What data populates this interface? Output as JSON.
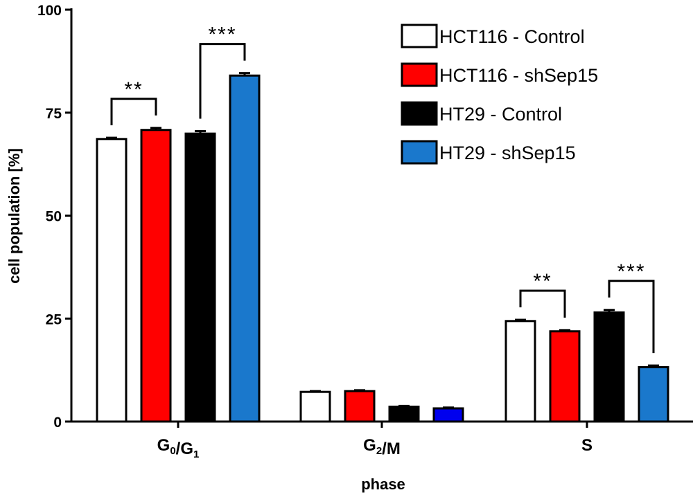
{
  "chart_data": {
    "type": "bar",
    "title": "",
    "xlabel": "phase",
    "ylabel": "cell population [%]",
    "ylim": [
      0,
      100
    ],
    "yticks": [
      0,
      25,
      50,
      75,
      100
    ],
    "categories": [
      {
        "main": "G",
        "sub1": "0",
        "sep": "/",
        "main2": "G",
        "sub2": "1"
      },
      {
        "main": "G",
        "sub1": "2",
        "sep": "/",
        "main2": "M",
        "sub2": ""
      },
      {
        "main": "S",
        "sub1": "",
        "sep": "",
        "main2": "",
        "sub2": ""
      }
    ],
    "series": [
      {
        "name": "HCT116 - Control",
        "color": "#ffffff",
        "values": [
          68.6,
          7.2,
          24.4
        ],
        "errors": [
          0.3,
          0.2,
          0.3
        ]
      },
      {
        "name": "HCT116 - shSep15",
        "color": "#ff0000",
        "values": [
          70.8,
          7.4,
          21.9
        ],
        "errors": [
          0.5,
          0.2,
          0.3
        ]
      },
      {
        "name": "HT29 - Control",
        "color": "#000000",
        "values": [
          69.9,
          3.6,
          26.5
        ],
        "errors": [
          0.6,
          0.2,
          0.6
        ]
      },
      {
        "name": "HT29 - shSep15",
        "color": "#1a78cc",
        "values": [
          84.0,
          3.2,
          13.2
        ],
        "errors": [
          0.6,
          0.2,
          0.4
        ]
      }
    ],
    "g2m_blue_color": "#0000ee",
    "significance": [
      {
        "category": 0,
        "from": 0,
        "to": 1,
        "label": "**"
      },
      {
        "category": 0,
        "from": 2,
        "to": 3,
        "label": "***"
      },
      {
        "category": 2,
        "from": 0,
        "to": 1,
        "label": "**"
      },
      {
        "category": 2,
        "from": 2,
        "to": 3,
        "label": "***"
      }
    ],
    "legend_position": "top-right"
  }
}
